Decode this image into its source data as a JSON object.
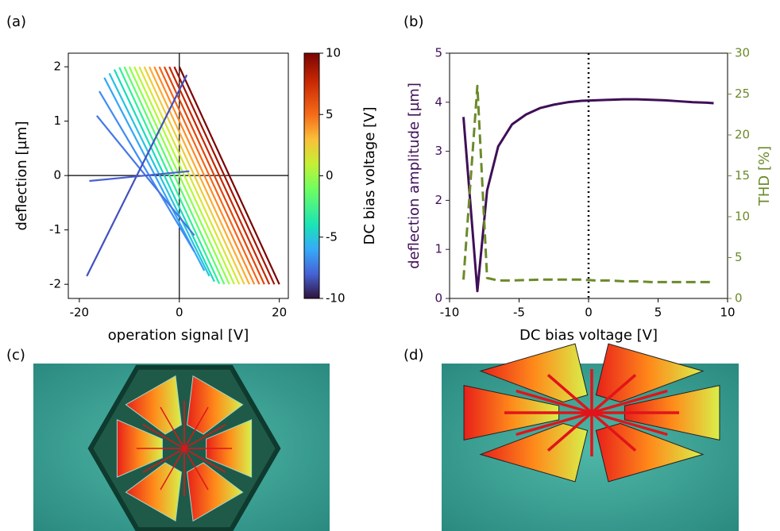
{
  "panel_labels": [
    "(a)",
    "(b)",
    "(c)",
    "(d)"
  ],
  "chart_data": [
    {
      "type": "line",
      "xlabel": "operation signal [V]",
      "ylabel": "deflection [µm]",
      "xlim": [
        -22.2,
        21.8
      ],
      "ylim": [
        -2.26,
        2.25
      ],
      "xticks": [
        -20,
        0,
        20
      ],
      "yticks": [
        -2,
        -1,
        0,
        1,
        2
      ],
      "zero_lines": true,
      "colorbar": {
        "label": "DC bias voltage [V]",
        "lim": [
          -10,
          10
        ],
        "ticks": [
          -10,
          -5,
          0,
          5,
          10
        ]
      },
      "series": [
        {
          "color": "#7a0403",
          "x": [
            0,
            20
          ],
          "values": [
            2,
            -2
          ]
        },
        {
          "color": "#a31502",
          "x": [
            -1,
            19
          ],
          "values": [
            2,
            -2
          ]
        },
        {
          "color": "#c52a04",
          "x": [
            -2,
            18
          ],
          "values": [
            2,
            -2
          ]
        },
        {
          "color": "#e0460b",
          "x": [
            -3,
            17
          ],
          "values": [
            2,
            -2
          ]
        },
        {
          "color": "#f3651a",
          "x": [
            -4,
            16
          ],
          "values": [
            2,
            -2
          ]
        },
        {
          "color": "#fd8a26",
          "x": [
            -5,
            15
          ],
          "values": [
            2,
            -2
          ]
        },
        {
          "color": "#fcac33",
          "x": [
            -6,
            14
          ],
          "values": [
            2,
            -2
          ]
        },
        {
          "color": "#efcb3a",
          "x": [
            -7,
            13
          ],
          "values": [
            2,
            -2
          ]
        },
        {
          "color": "#d8e535",
          "x": [
            -8,
            12
          ],
          "values": [
            2,
            -2
          ]
        },
        {
          "color": "#b4f836",
          "x": [
            -9,
            11
          ],
          "values": [
            2,
            -2
          ]
        },
        {
          "color": "#8dff4a",
          "x": [
            -10,
            10
          ],
          "values": [
            2,
            -2
          ]
        },
        {
          "color": "#5dfc6f",
          "x": [
            -11,
            9
          ],
          "values": [
            2,
            -2
          ]
        },
        {
          "color": "#2ff099",
          "x": [
            -12,
            8
          ],
          "values": [
            1.99,
            -1.99
          ]
        },
        {
          "color": "#1adbbb",
          "x": [
            -13,
            7
          ],
          "values": [
            1.95,
            -1.95
          ]
        },
        {
          "color": "#26c2e2",
          "x": [
            -14,
            6
          ],
          "values": [
            1.88,
            -1.85
          ]
        },
        {
          "color": "#33a6f5",
          "x": [
            -15,
            5
          ],
          "values": [
            1.8,
            -1.75
          ]
        },
        {
          "color": "#3f8cf4",
          "x": [
            -16,
            3
          ],
          "values": [
            1.55,
            -1.4
          ]
        },
        {
          "color": "#4577e6",
          "x": [
            -16.5,
            3
          ],
          "values": [
            1.1,
            -1.1
          ]
        },
        {
          "color": "#4a5fd3",
          "x": [
            -18,
            2
          ],
          "values": [
            -0.1,
            0.08
          ]
        },
        {
          "color": "#4250c0",
          "x": [
            -18.5,
            1.5
          ],
          "values": [
            -1.85,
            1.85
          ]
        }
      ]
    },
    {
      "type": "line",
      "xlabel": "DC bias voltage [V]",
      "ylabel": "deflection amplitude [µm]",
      "y2label": "THD  [%]",
      "xlim": [
        -10,
        10
      ],
      "ylim": [
        0,
        5
      ],
      "y2lim": [
        0,
        30
      ],
      "xticks": [
        -10,
        -5,
        0,
        5,
        10
      ],
      "yticks": [
        0,
        1,
        2,
        3,
        4,
        5
      ],
      "y2ticks": [
        0,
        5,
        10,
        15,
        20,
        25,
        30
      ],
      "vline": 0,
      "x": [
        -9,
        -8,
        -7.3,
        -6.5,
        -5.5,
        -4.5,
        -3.5,
        -2.5,
        -1.5,
        -0.5,
        0.5,
        1.5,
        2.5,
        3.5,
        4.5,
        5.5,
        6.5,
        7.5,
        8.5,
        9
      ],
      "series": [
        {
          "color": "#3f0f57",
          "values": [
            3.7,
            0.15,
            2.2,
            3.1,
            3.55,
            3.75,
            3.88,
            3.95,
            4.0,
            4.03,
            4.04,
            4.05,
            4.06,
            4.06,
            4.05,
            4.04,
            4.02,
            4.0,
            3.99,
            3.98
          ]
        },
        {
          "color": "#6b8a2a",
          "axis": "y2",
          "dashed": true,
          "values": [
            2.3,
            26,
            2.5,
            2.2,
            2.2,
            2.25,
            2.3,
            2.3,
            2.3,
            2.3,
            2.2,
            2.2,
            2.1,
            2.1,
            2.0,
            2.0,
            2.0,
            2.0,
            2.0,
            2.0
          ]
        }
      ]
    }
  ]
}
